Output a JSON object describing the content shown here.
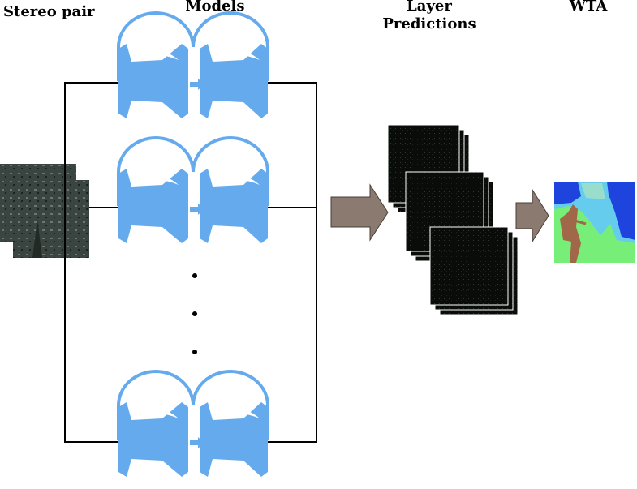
{
  "headers": {
    "stereo_pair": "Stereo pair",
    "models": "Models",
    "layer_predictions_line1": "Layer",
    "layer_predictions_line2": "Predictions",
    "wta": "WTA"
  },
  "colors": {
    "model_blue": "#66aaee",
    "connector_line": "#000000",
    "flow_arrow": "#8a7a70",
    "prediction_dark": "#0a0c0a",
    "wta_green": "#77ee77",
    "wta_blue": "#1f44dd",
    "wta_cyan": "#66ccee",
    "wta_figure": "#a06848"
  },
  "model_branches": [
    "model-top",
    "model-middle",
    "model-bottom"
  ],
  "ellipsis": "vertical-dots"
}
